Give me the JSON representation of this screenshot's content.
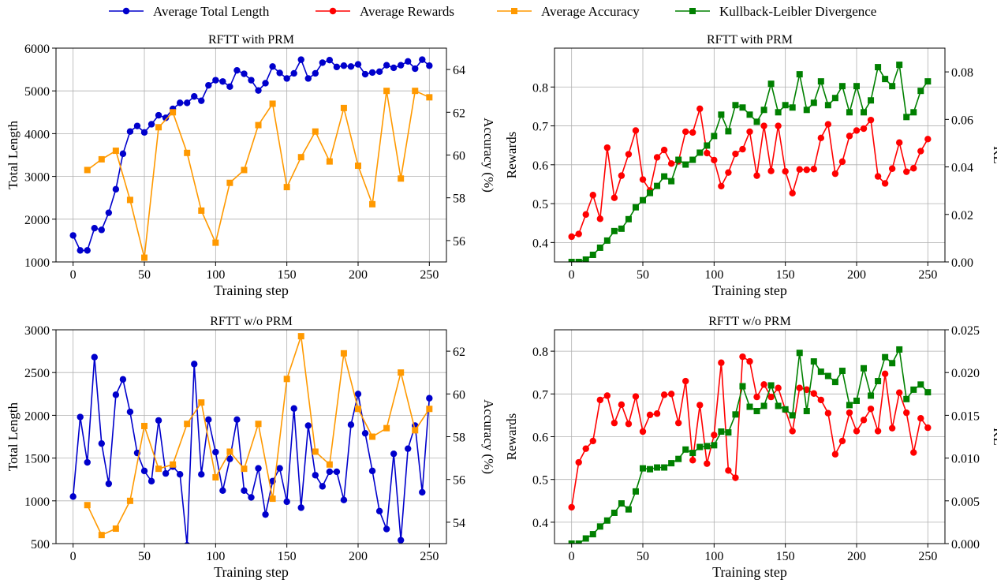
{
  "legend": {
    "items": [
      {
        "label": "Average Total Length",
        "color": "#0000cc",
        "marker": "circle"
      },
      {
        "label": "Average Rewards",
        "color": "#ff0000",
        "marker": "circle"
      },
      {
        "label": "Average Accuracy",
        "color": "#ff9900",
        "marker": "square"
      },
      {
        "label": "Kullback-Leibler Divergence",
        "color": "#008000",
        "marker": "square"
      }
    ]
  },
  "chart_data": [
    {
      "type": "line",
      "title": "RFTT with PRM",
      "xlabel": "Training step",
      "ylabel": "Total Length",
      "ylabel_right": "Accuracy (%)",
      "xlim": [
        -12,
        262
      ],
      "ylim": [
        1000,
        6000
      ],
      "ylim_right": [
        55,
        65
      ],
      "xticks": [
        0,
        50,
        100,
        150,
        200,
        250
      ],
      "yticks": [
        1000,
        2000,
        3000,
        4000,
        5000,
        6000
      ],
      "yticks_right": [
        56,
        58,
        60,
        62,
        64
      ],
      "grid": true,
      "series": [
        {
          "name": "Average Total Length",
          "axis": "left",
          "color": "#0000cc",
          "marker": "circle",
          "x": [
            0,
            5,
            10,
            15,
            20,
            25,
            30,
            35,
            40,
            45,
            50,
            55,
            60,
            65,
            70,
            75,
            80,
            85,
            90,
            95,
            100,
            105,
            110,
            115,
            120,
            125,
            130,
            135,
            140,
            145,
            150,
            155,
            160,
            165,
            170,
            175,
            180,
            185,
            190,
            195,
            200,
            205,
            210,
            215,
            220,
            225,
            230,
            235,
            240,
            245,
            250
          ],
          "y": [
            1620,
            1270,
            1270,
            1790,
            1750,
            2150,
            2700,
            3530,
            4050,
            4180,
            4030,
            4220,
            4430,
            4370,
            4580,
            4720,
            4720,
            4870,
            4770,
            5130,
            5250,
            5220,
            5100,
            5480,
            5400,
            5250,
            5010,
            5180,
            5570,
            5420,
            5290,
            5410,
            5730,
            5290,
            5410,
            5660,
            5720,
            5560,
            5590,
            5570,
            5620,
            5390,
            5430,
            5450,
            5600,
            5540,
            5600,
            5690,
            5520,
            5730,
            5590
          ]
        },
        {
          "name": "Average Accuracy",
          "axis": "right",
          "color": "#ff9900",
          "marker": "square",
          "x": [
            10,
            20,
            30,
            40,
            50,
            60,
            70,
            80,
            90,
            100,
            110,
            120,
            130,
            140,
            150,
            160,
            170,
            180,
            190,
            200,
            210,
            220,
            230,
            240,
            250
          ],
          "y": [
            59.3,
            59.8,
            60.2,
            57.9,
            55.2,
            61.3,
            62.0,
            60.1,
            57.4,
            55.9,
            58.7,
            59.3,
            61.4,
            62.4,
            58.5,
            59.9,
            61.1,
            59.7,
            62.2,
            59.5,
            57.7,
            63.0,
            58.9,
            63.0,
            62.7
          ]
        }
      ]
    },
    {
      "type": "line",
      "title": "RFTT with PRM",
      "xlabel": "Training step",
      "ylabel": "Rewards",
      "ylabel_right": "KL",
      "xlim": [
        -12,
        262
      ],
      "ylim": [
        0.35,
        0.9
      ],
      "ylim_right": [
        0,
        0.09
      ],
      "xticks": [
        0,
        50,
        100,
        150,
        200,
        250
      ],
      "yticks": [
        0.4,
        0.5,
        0.6,
        0.7,
        0.8
      ],
      "yticks_right": [
        0.0,
        0.02,
        0.04,
        0.06,
        0.08
      ],
      "grid": true,
      "series": [
        {
          "name": "Average Rewards",
          "axis": "left",
          "color": "#ff0000",
          "marker": "circle",
          "x": [
            0,
            5,
            10,
            15,
            20,
            25,
            30,
            35,
            40,
            45,
            50,
            55,
            60,
            65,
            70,
            75,
            80,
            85,
            90,
            95,
            100,
            105,
            110,
            115,
            120,
            125,
            130,
            135,
            140,
            145,
            150,
            155,
            160,
            165,
            170,
            175,
            180,
            185,
            190,
            195,
            200,
            205,
            210,
            215,
            220,
            225,
            230,
            235,
            240,
            245,
            250
          ],
          "y": [
            0.415,
            0.422,
            0.472,
            0.522,
            0.461,
            0.644,
            0.515,
            0.572,
            0.627,
            0.688,
            0.562,
            0.534,
            0.619,
            0.638,
            0.603,
            0.609,
            0.685,
            0.683,
            0.744,
            0.63,
            0.612,
            0.545,
            0.58,
            0.628,
            0.64,
            0.685,
            0.572,
            0.7,
            0.584,
            0.7,
            0.583,
            0.527,
            0.588,
            0.587,
            0.589,
            0.669,
            0.704,
            0.577,
            0.608,
            0.674,
            0.688,
            0.693,
            0.715,
            0.57,
            0.552,
            0.59,
            0.657,
            0.582,
            0.591,
            0.635,
            0.666
          ]
        },
        {
          "name": "Kullback-Leibler Divergence",
          "axis": "right",
          "color": "#008000",
          "marker": "square",
          "x": [
            0,
            5,
            10,
            15,
            20,
            25,
            30,
            35,
            40,
            45,
            50,
            55,
            60,
            65,
            70,
            75,
            80,
            85,
            90,
            95,
            100,
            105,
            110,
            115,
            120,
            125,
            130,
            135,
            140,
            145,
            150,
            155,
            160,
            165,
            170,
            175,
            180,
            185,
            190,
            195,
            200,
            205,
            210,
            215,
            220,
            225,
            230,
            235,
            240,
            245,
            250
          ],
          "y": [
            0.0,
            0.0,
            0.001,
            0.003,
            0.006,
            0.009,
            0.013,
            0.014,
            0.018,
            0.023,
            0.026,
            0.029,
            0.032,
            0.036,
            0.034,
            0.043,
            0.041,
            0.043,
            0.046,
            0.049,
            0.053,
            0.062,
            0.055,
            0.066,
            0.065,
            0.062,
            0.059,
            0.064,
            0.075,
            0.063,
            0.066,
            0.065,
            0.079,
            0.064,
            0.067,
            0.076,
            0.066,
            0.069,
            0.074,
            0.063,
            0.074,
            0.063,
            0.068,
            0.082,
            0.077,
            0.074,
            0.083,
            0.061,
            0.063,
            0.072,
            0.076
          ]
        }
      ]
    },
    {
      "type": "line",
      "title": "RFTT w/o PRM",
      "xlabel": "Training step",
      "ylabel": "Total Length",
      "ylabel_right": "Accuracy (%)",
      "xlim": [
        -12,
        262
      ],
      "ylim": [
        500,
        3000
      ],
      "ylim_right": [
        53,
        63
      ],
      "xticks": [
        0,
        50,
        100,
        150,
        200,
        250
      ],
      "yticks": [
        500,
        1000,
        1500,
        2000,
        2500,
        3000
      ],
      "yticks_right": [
        54,
        56,
        58,
        60,
        62
      ],
      "grid": true,
      "series": [
        {
          "name": "Average Total Length",
          "axis": "left",
          "color": "#0000cc",
          "marker": "circle",
          "x": [
            0,
            5,
            10,
            15,
            20,
            25,
            30,
            35,
            40,
            45,
            50,
            55,
            60,
            65,
            70,
            75,
            80,
            85,
            90,
            95,
            100,
            105,
            110,
            115,
            120,
            125,
            130,
            135,
            140,
            145,
            150,
            155,
            160,
            165,
            170,
            175,
            180,
            185,
            190,
            195,
            200,
            205,
            210,
            215,
            220,
            225,
            230,
            235,
            240,
            245,
            250
          ],
          "y": [
            1050,
            1980,
            1450,
            2680,
            1670,
            1200,
            2240,
            2420,
            2040,
            1560,
            1350,
            1230,
            1940,
            1320,
            1400,
            1310,
            480,
            2600,
            1310,
            1950,
            1570,
            1120,
            1490,
            1950,
            1120,
            1040,
            1380,
            840,
            1230,
            1380,
            990,
            2080,
            920,
            1880,
            1300,
            1170,
            1340,
            1340,
            1010,
            1890,
            2250,
            1790,
            1350,
            880,
            670,
            1550,
            540,
            1610,
            1880,
            1100,
            2200
          ]
        },
        {
          "name": "Average Accuracy",
          "axis": "right",
          "color": "#ff9900",
          "marker": "square",
          "x": [
            10,
            20,
            30,
            40,
            50,
            60,
            70,
            80,
            90,
            100,
            110,
            120,
            130,
            140,
            150,
            160,
            170,
            180,
            190,
            200,
            210,
            220,
            230,
            240,
            250
          ],
          "y": [
            54.8,
            53.4,
            53.7,
            55.0,
            58.5,
            56.5,
            56.7,
            58.6,
            59.6,
            56.1,
            57.3,
            56.5,
            58.6,
            55.1,
            60.7,
            62.7,
            57.3,
            56.7,
            61.9,
            59.3,
            58.0,
            58.4,
            61.0,
            58.3,
            59.3
          ]
        }
      ]
    },
    {
      "type": "line",
      "title": "RFTT w/o PRM",
      "xlabel": "Training step",
      "ylabel": "Rewards",
      "ylabel_right": "KL",
      "xlim": [
        -12,
        262
      ],
      "ylim": [
        0.35,
        0.85
      ],
      "ylim_right": [
        0,
        0.025
      ],
      "xticks": [
        0,
        50,
        100,
        150,
        200,
        250
      ],
      "yticks": [
        0.4,
        0.5,
        0.6,
        0.7,
        0.8
      ],
      "yticks_right": [
        0.0,
        0.005,
        0.01,
        0.015,
        0.02,
        0.025
      ],
      "grid": true,
      "series": [
        {
          "name": "Average Rewards",
          "axis": "left",
          "color": "#ff0000",
          "marker": "circle",
          "x": [
            0,
            5,
            10,
            15,
            20,
            25,
            30,
            35,
            40,
            45,
            50,
            55,
            60,
            65,
            70,
            75,
            80,
            85,
            90,
            95,
            100,
            105,
            110,
            115,
            120,
            125,
            130,
            135,
            140,
            145,
            150,
            155,
            160,
            165,
            170,
            175,
            180,
            185,
            190,
            195,
            200,
            205,
            210,
            215,
            220,
            225,
            230,
            235,
            240,
            245,
            250
          ],
          "y": [
            0.435,
            0.54,
            0.572,
            0.59,
            0.686,
            0.696,
            0.632,
            0.675,
            0.63,
            0.694,
            0.612,
            0.651,
            0.654,
            0.698,
            0.7,
            0.632,
            0.73,
            0.545,
            0.674,
            0.537,
            0.604,
            0.773,
            0.521,
            0.504,
            0.787,
            0.776,
            0.693,
            0.722,
            0.693,
            0.714,
            0.663,
            0.613,
            0.714,
            0.71,
            0.701,
            0.686,
            0.655,
            0.559,
            0.59,
            0.656,
            0.613,
            0.639,
            0.665,
            0.613,
            0.747,
            0.62,
            0.703,
            0.656,
            0.563,
            0.643,
            0.621
          ]
        },
        {
          "name": "Kullback-Leibler Divergence",
          "axis": "right",
          "color": "#008000",
          "marker": "square",
          "x": [
            0,
            5,
            10,
            15,
            20,
            25,
            30,
            35,
            40,
            45,
            50,
            55,
            60,
            65,
            70,
            75,
            80,
            85,
            90,
            95,
            100,
            105,
            110,
            115,
            120,
            125,
            130,
            135,
            140,
            145,
            150,
            155,
            160,
            165,
            170,
            175,
            180,
            185,
            190,
            195,
            200,
            205,
            210,
            215,
            220,
            225,
            230,
            235,
            240,
            245,
            250
          ],
          "y": [
            0.0,
            0.0,
            0.0006,
            0.0011,
            0.002,
            0.0027,
            0.0036,
            0.0047,
            0.004,
            0.0061,
            0.0088,
            0.0087,
            0.0089,
            0.0089,
            0.0094,
            0.0099,
            0.011,
            0.0106,
            0.0113,
            0.0114,
            0.0115,
            0.0131,
            0.013,
            0.0151,
            0.0184,
            0.016,
            0.0155,
            0.0161,
            0.0185,
            0.0161,
            0.0157,
            0.015,
            0.0223,
            0.0155,
            0.0213,
            0.0201,
            0.0196,
            0.0189,
            0.0202,
            0.0162,
            0.0167,
            0.0205,
            0.0173,
            0.019,
            0.0218,
            0.0211,
            0.0227,
            0.0169,
            0.018,
            0.0186,
            0.0177
          ]
        }
      ]
    }
  ]
}
